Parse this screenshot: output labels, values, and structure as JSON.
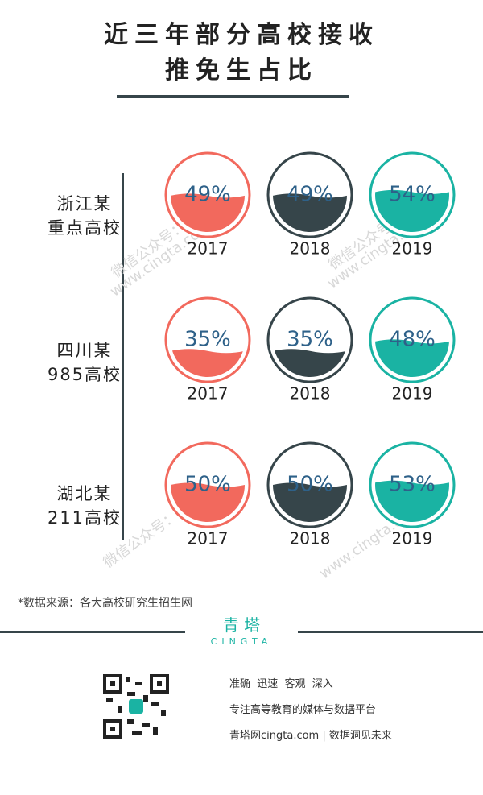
{
  "chart_data": {
    "type": "gauge",
    "title": "近三年部分高校接收\n推免生占比",
    "categories": [
      "浙江某\n重点高校",
      "四川某\n985高校",
      "湖北某\n211高校"
    ],
    "ylim": [
      0,
      100
    ],
    "series": [
      {
        "name": "2017",
        "color": "#f2695d",
        "values": [
          49,
          35,
          50
        ],
        "value_labels": [
          "49%",
          "35%",
          "50%"
        ]
      },
      {
        "name": "2018",
        "color": "#36454a",
        "values": [
          49,
          35,
          50
        ],
        "value_labels": [
          "49%",
          "35%",
          "50%"
        ]
      },
      {
        "name": "2019",
        "color": "#1ab3a3",
        "values": [
          54,
          48,
          53
        ],
        "value_labels": [
          "54%",
          "48%",
          "53%"
        ]
      }
    ],
    "source": "*数据来源：各大高校研究生招生网",
    "watermarks": [
      "微信公众号：青塔",
      "www.cingta.com"
    ]
  },
  "footer": {
    "brand": "青 塔",
    "brand_en": "CINGTA",
    "slogan": "准确  迅速  客观  深入",
    "tagline": "专注高等教育的媒体与数据平台",
    "site": "青塔网cingta.com | 数据洞见未来"
  }
}
